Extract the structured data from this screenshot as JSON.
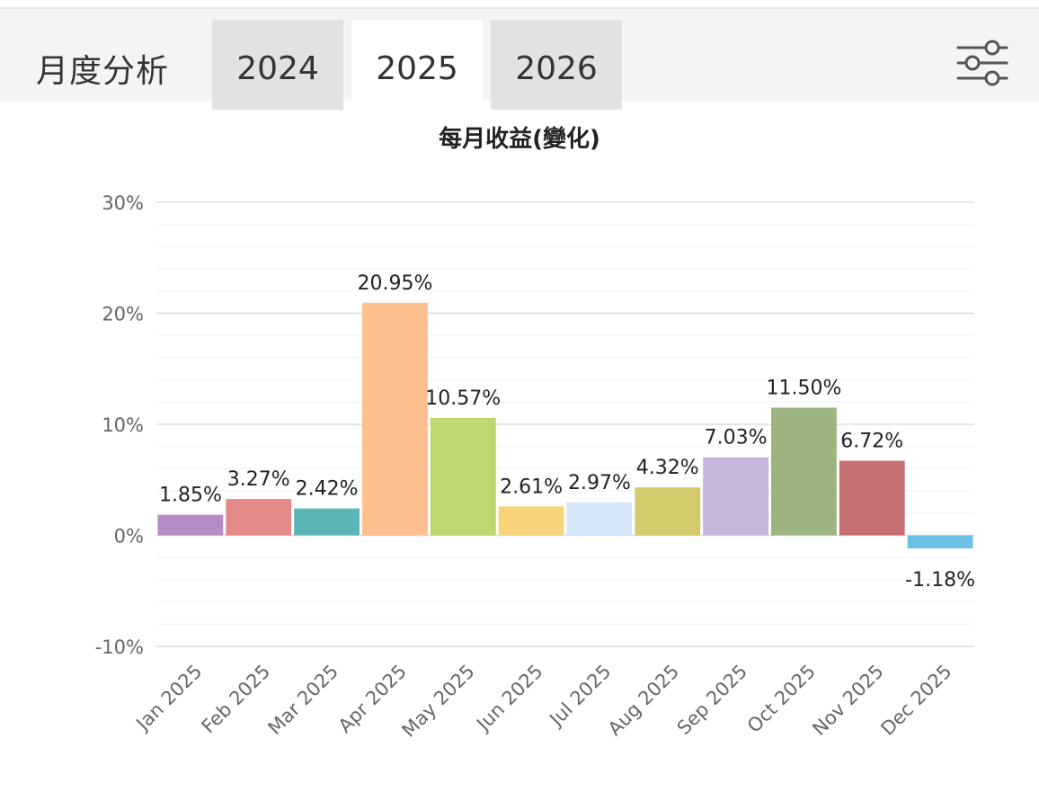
{
  "header": {
    "title": "月度分析",
    "tabs": [
      {
        "label": "2024",
        "active": false
      },
      {
        "label": "2025",
        "active": true
      },
      {
        "label": "2026",
        "active": false
      }
    ],
    "filter_icon": "sliders-icon"
  },
  "chart_data": {
    "type": "bar",
    "title": "每月收益(變化)",
    "categories": [
      "Jan 2025",
      "Feb 2025",
      "Mar 2025",
      "Apr 2025",
      "May 2025",
      "Jun 2025",
      "Jul 2025",
      "Aug 2025",
      "Sep 2025",
      "Oct 2025",
      "Nov 2025",
      "Dec 2025"
    ],
    "values": [
      1.85,
      3.27,
      2.42,
      20.95,
      10.57,
      2.61,
      2.97,
      4.32,
      7.03,
      11.5,
      6.72,
      -1.18
    ],
    "data_labels": [
      "1.85%",
      "3.27%",
      "2.42%",
      "20.95%",
      "10.57%",
      "2.61%",
      "2.97%",
      "4.32%",
      "7.03%",
      "11.50%",
      "6.72%",
      "-1.18%"
    ],
    "colors": [
      "#b48bc4",
      "#e58a88",
      "#5ab5b5",
      "#ffbe8e",
      "#bcd86e",
      "#f6d57a",
      "#d3e7f8",
      "#d2cb6c",
      "#c6b6db",
      "#9cb57f",
      "#c56f74",
      "#6cc0e8"
    ],
    "ylim": [
      -10,
      30
    ],
    "yticks": [
      30,
      20,
      10,
      0,
      -10
    ],
    "ytick_labels": [
      "30%",
      "20%",
      "10%",
      "0%",
      "-10%"
    ],
    "grid": true,
    "legend": "none"
  }
}
